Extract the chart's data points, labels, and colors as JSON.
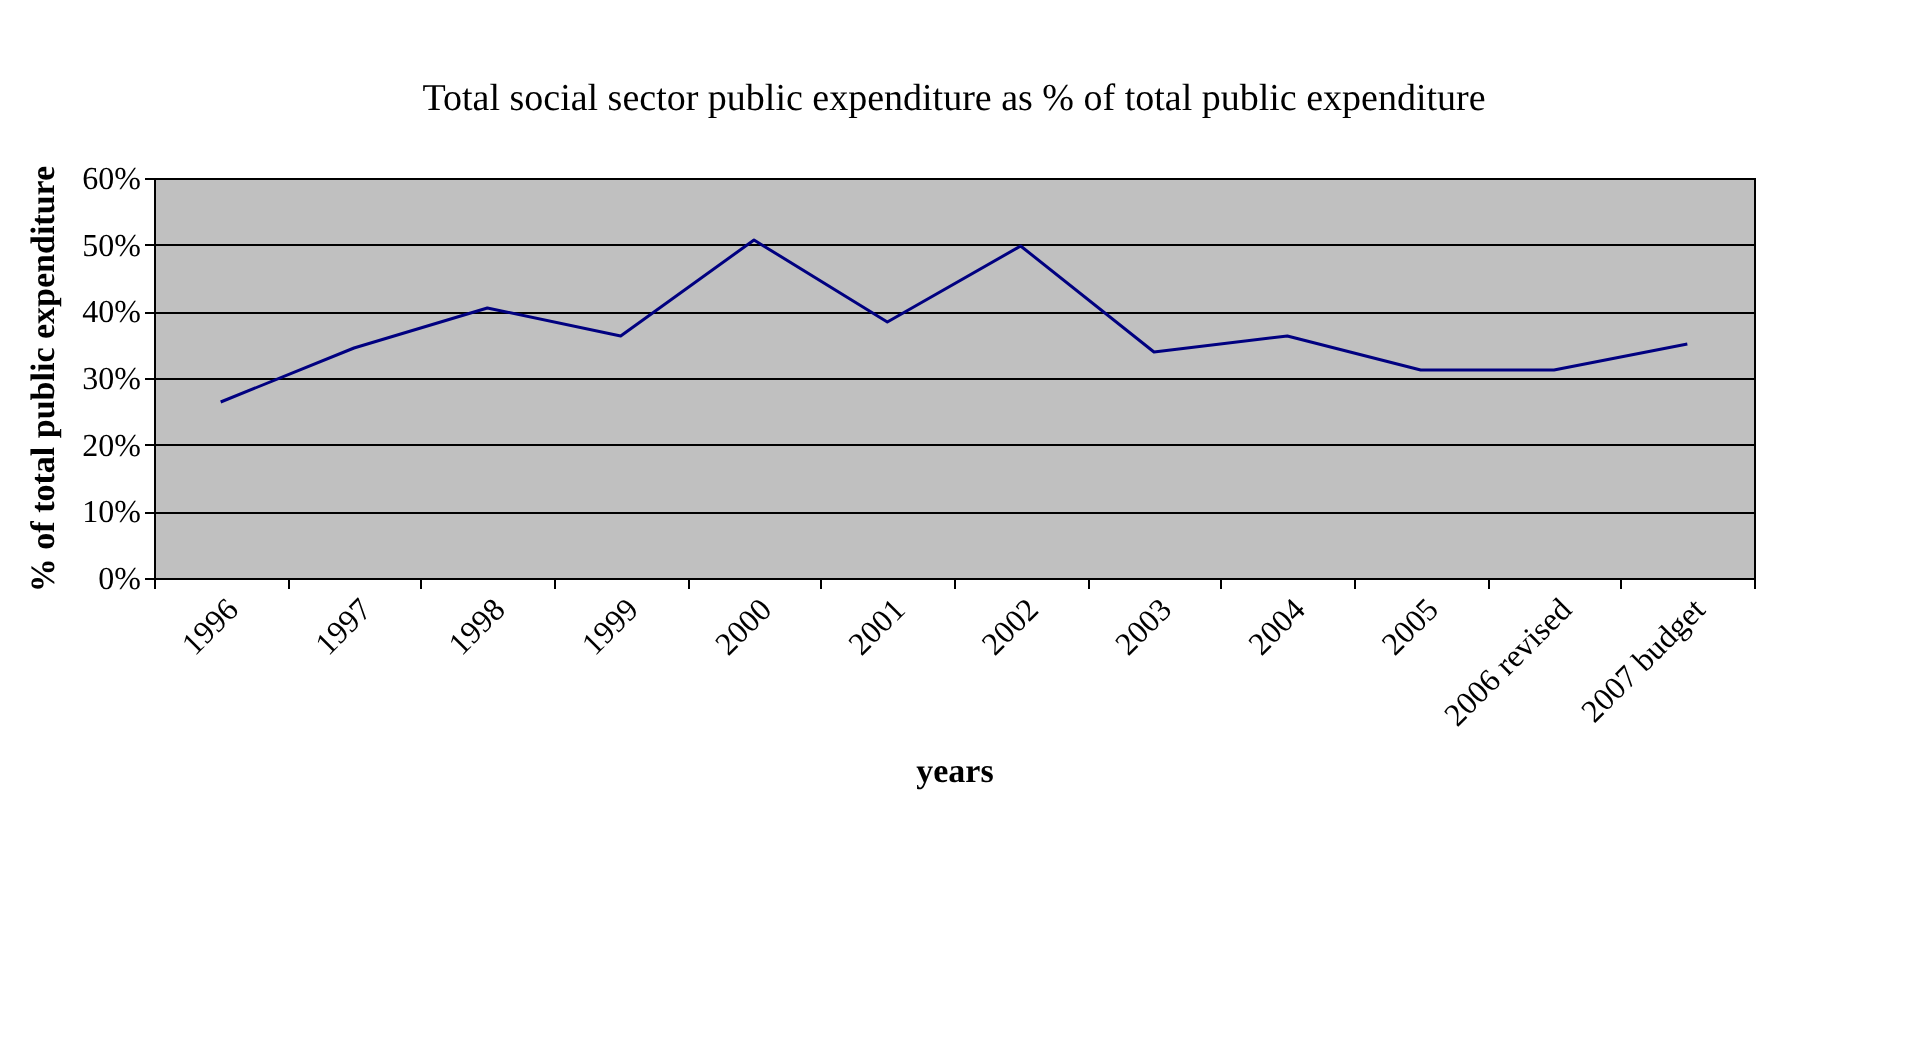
{
  "chart_data": {
    "type": "line",
    "title": "Total social sector public expenditure as % of total public expenditure",
    "xlabel": "years",
    "ylabel": "% of total public expenditure",
    "categories": [
      "1996",
      "1997",
      "1998",
      "1999",
      "2000",
      "2001",
      "2002",
      "2003",
      "2004",
      "2005",
      "2006 revised",
      "2007 budget"
    ],
    "series": [
      {
        "color": "#000080",
        "values": [
          26.4,
          34.5,
          40.5,
          36.3,
          50.7,
          38.4,
          49.8,
          33.9,
          36.3,
          31.2,
          31.2,
          35.1
        ]
      }
    ],
    "ylim": [
      0,
      60
    ],
    "yticks": [
      {
        "value": 0,
        "label": "0%"
      },
      {
        "value": 10,
        "label": "10%"
      },
      {
        "value": 20,
        "label": "20%"
      },
      {
        "value": 30,
        "label": "30%"
      },
      {
        "value": 40,
        "label": "40%"
      },
      {
        "value": 50,
        "label": "50%"
      },
      {
        "value": 60,
        "label": "60%"
      }
    ],
    "grid": "y",
    "marker": "none",
    "line_style": "solid"
  }
}
